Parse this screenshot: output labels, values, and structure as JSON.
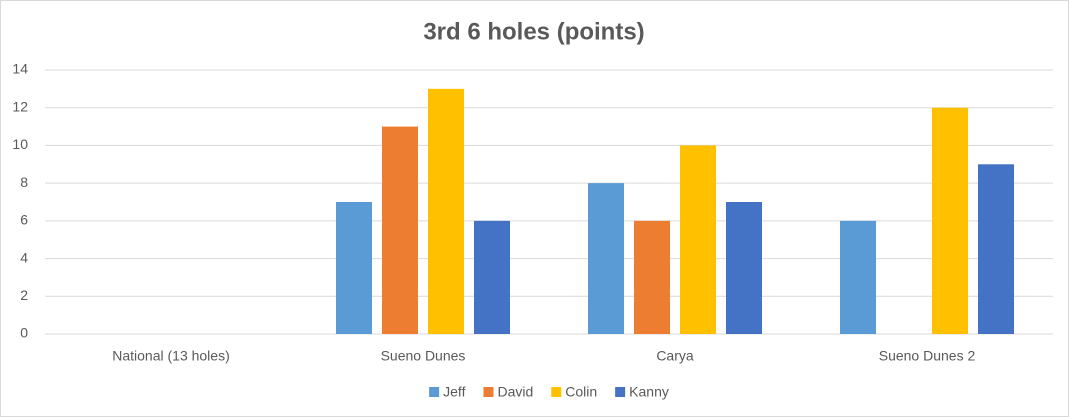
{
  "chart_data": {
    "type": "bar",
    "title": "3rd 6 holes (points)",
    "categories": [
      "National (13 holes)",
      "Sueno Dunes",
      "Carya",
      "Sueno Dunes 2"
    ],
    "series": [
      {
        "name": "Jeff",
        "color": "#5b9bd5",
        "values": [
          null,
          7,
          8,
          6
        ]
      },
      {
        "name": "David",
        "color": "#ed7d31",
        "values": [
          null,
          11,
          6,
          null
        ]
      },
      {
        "name": "Colin",
        "color": "#ffc000",
        "values": [
          null,
          13,
          10,
          12
        ]
      },
      {
        "name": "Kanny",
        "color": "#4472c4",
        "values": [
          null,
          6,
          7,
          9
        ]
      }
    ],
    "ylim": [
      0,
      14
    ],
    "yticks": [
      0,
      2,
      4,
      6,
      8,
      10,
      12,
      14
    ],
    "grid": true,
    "legend": "bottom"
  }
}
